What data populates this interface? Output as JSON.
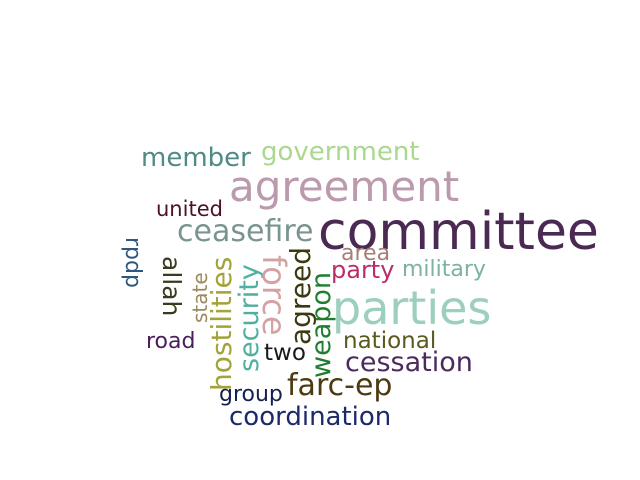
{
  "words": {
    "committee": {
      "text": "committee",
      "color": "#4a2a52"
    },
    "agreement": {
      "text": "agreement",
      "color": "#bb9aae"
    },
    "parties": {
      "text": "parties",
      "color": "#9dcfbf"
    },
    "member": {
      "text": "member",
      "color": "#4f8a86"
    },
    "government": {
      "text": "government",
      "color": "#abd88e"
    },
    "united": {
      "text": "united",
      "color": "#4e1027"
    },
    "ceasefire": {
      "text": "ceasefire",
      "color": "#7a9490"
    },
    "area": {
      "text": "area",
      "color": "#a77e76"
    },
    "party": {
      "text": "party",
      "color": "#b92d6a"
    },
    "military": {
      "text": "military",
      "color": "#7bb39f"
    },
    "national": {
      "text": "national",
      "color": "#5a5a1e"
    },
    "cessation": {
      "text": "cessation",
      "color": "#4d2a5e"
    },
    "two": {
      "text": "two",
      "color": "#1a1a1a"
    },
    "farc_ep": {
      "text": "farc-ep",
      "color": "#4d3a12"
    },
    "group": {
      "text": "group",
      "color": "#15204e"
    },
    "coordination": {
      "text": "coordination",
      "color": "#1c2a6a"
    },
    "road": {
      "text": "road",
      "color": "#4a1e5a"
    },
    "rpdp": {
      "text": "rpdp",
      "color": "#2d5880"
    },
    "state": {
      "text": "state",
      "color": "#9a8a5e"
    },
    "allah": {
      "text": "allah",
      "color": "#3a3a1c"
    },
    "hostilities": {
      "text": "hostilities",
      "color": "#a3a33a"
    },
    "security": {
      "text": "security",
      "color": "#4fb0a0"
    },
    "force": {
      "text": "force",
      "color": "#d5a2a4"
    },
    "agreed": {
      "text": "agreed",
      "color": "#3a3a10"
    },
    "weapon": {
      "text": "weapon",
      "color": "#1e7e2e"
    }
  }
}
